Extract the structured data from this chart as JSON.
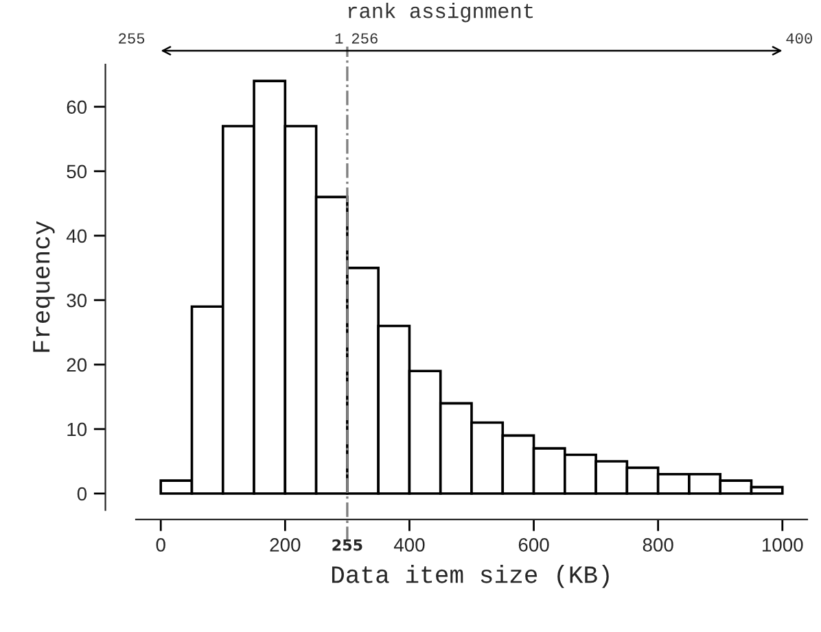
{
  "chart_data": {
    "type": "histogram",
    "xlabel": "Data item size (KB)",
    "ylabel": "Frequency",
    "bins": [
      0,
      50,
      100,
      150,
      200,
      250,
      300,
      350,
      400,
      450,
      500,
      550,
      600,
      650,
      700,
      750,
      800,
      850,
      900,
      950,
      1000
    ],
    "values": [
      2,
      29,
      57,
      64,
      57,
      46,
      35,
      26,
      19,
      14,
      11,
      9,
      7,
      6,
      5,
      4,
      3,
      3,
      2,
      1
    ],
    "color": "#ffffff",
    "xlim": [
      -40,
      1040
    ],
    "ylim": [
      -2.56,
      66.56
    ],
    "xticks": [
      0,
      200,
      400,
      600,
      800,
      1000
    ],
    "yticks": [
      0,
      10,
      20,
      30,
      40,
      50,
      60
    ],
    "ref_lines": [
      {
        "axis": "x",
        "value": 300,
        "color": "#808080",
        "line_style": "dashdot"
      }
    ],
    "annotations": [
      "rank assignment",
      "255",
      "1",
      "256",
      "400",
      "255"
    ],
    "grid": false
  }
}
